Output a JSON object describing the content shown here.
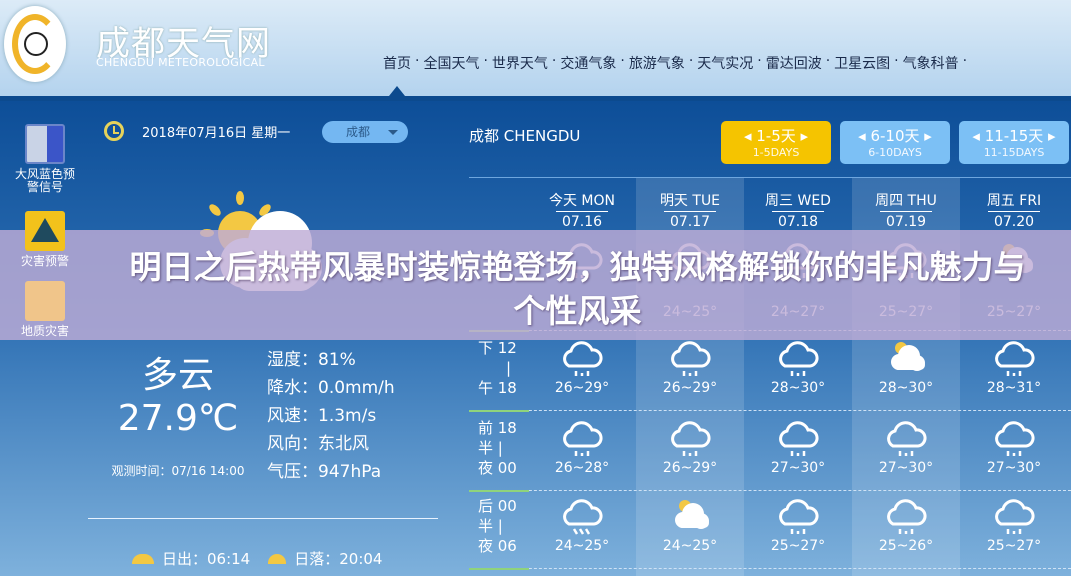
{
  "header": {
    "site_name": "成都天气网",
    "site_name_en": "CHENGDU METEOROLOGICAL",
    "nav": [
      "首页",
      "全国天气",
      "世界天气",
      "交通气象",
      "旅游气象",
      "天气实况",
      "雷达回波",
      "卫星云图",
      "气象科普"
    ],
    "nav_sep": "·"
  },
  "warnings": [
    {
      "label": "大风蓝色预警信号",
      "icon": "gale-blue-warning-icon"
    },
    {
      "label": "灾害预警",
      "icon": "warning-triangle-icon"
    },
    {
      "label": "地质灾害",
      "icon": "landslide-icon"
    }
  ],
  "current": {
    "date": "2018年07月16日 星期一",
    "city_select": "成都",
    "condition": "多云",
    "temperature": "27.9℃",
    "obs_time": "观测时间：07/16 14:00",
    "details": [
      "湿度：81%",
      "降水：0.0mm/h",
      "风速：1.3m/s",
      "风向：东北风",
      "气压：947hPa"
    ],
    "sunrise": "日出：06:14",
    "sunset": "日落：20:04"
  },
  "forecast": {
    "city": "成都 CHENGDU",
    "tabs": [
      {
        "l1": "◂ 1-5天 ▸",
        "l2": "1-5DAYS",
        "active": true
      },
      {
        "l1": "◂ 6-10天 ▸",
        "l2": "6-10DAYS"
      },
      {
        "l1": "◂ 11-15天 ▸",
        "l2": "11-15DAYS"
      }
    ],
    "days": [
      {
        "name": "今天 MON",
        "date": "07.16"
      },
      {
        "name": "明天 TUE",
        "date": "07.17"
      },
      {
        "name": "周三 WED",
        "date": "07.18"
      },
      {
        "name": "周四 THU",
        "date": "07.19"
      },
      {
        "name": "周五 FRI",
        "date": "07.20"
      }
    ],
    "rows": [
      {
        "label": [
          "",
          ""
        ],
        "cells": [
          {
            "icon": "rain",
            "temp": ""
          },
          {
            "icon": "rain",
            "temp": "24~25°"
          },
          {
            "icon": "rain",
            "temp": "24~27°"
          },
          {
            "icon": "rain",
            "temp": "25~27°"
          },
          {
            "icon": "cloudy-sun",
            "temp": "25~27°"
          }
        ]
      },
      {
        "label": [
          "下 12",
          "午 18"
        ],
        "cells": [
          {
            "icon": "rain",
            "temp": "26~29°"
          },
          {
            "icon": "rain",
            "temp": "26~29°"
          },
          {
            "icon": "rain",
            "temp": "28~30°"
          },
          {
            "icon": "cloudy-sun",
            "temp": "28~30°"
          },
          {
            "icon": "rain",
            "temp": "28~31°"
          }
        ]
      },
      {
        "label": [
          "前 18",
          "夜 00"
        ],
        "mid": "半 |",
        "cells": [
          {
            "icon": "rain",
            "temp": "26~28°"
          },
          {
            "icon": "rain",
            "temp": "26~29°"
          },
          {
            "icon": "rain",
            "temp": "27~30°"
          },
          {
            "icon": "rain",
            "temp": "27~30°"
          },
          {
            "icon": "rain",
            "temp": "27~30°"
          }
        ]
      },
      {
        "label": [
          "后 00",
          "夜 06"
        ],
        "mid": "半 |",
        "cells": [
          {
            "icon": "heavy-rain",
            "temp": "24~25°"
          },
          {
            "icon": "cloudy-sun",
            "temp": "24~25°"
          },
          {
            "icon": "rain",
            "temp": "25~27°"
          },
          {
            "icon": "rain",
            "temp": "25~26°"
          },
          {
            "icon": "rain",
            "temp": "25~27°"
          }
        ]
      }
    ]
  },
  "banner": {
    "line1": "明日之后热带风暴时装惊艳登场，独特风格解锁你的非凡魅力与",
    "line2": "个性风采"
  },
  "colors": {
    "accent_yellow": "#f5c400",
    "tab_blue": "#7cc0f5",
    "main_blue": "#0d4e98"
  }
}
